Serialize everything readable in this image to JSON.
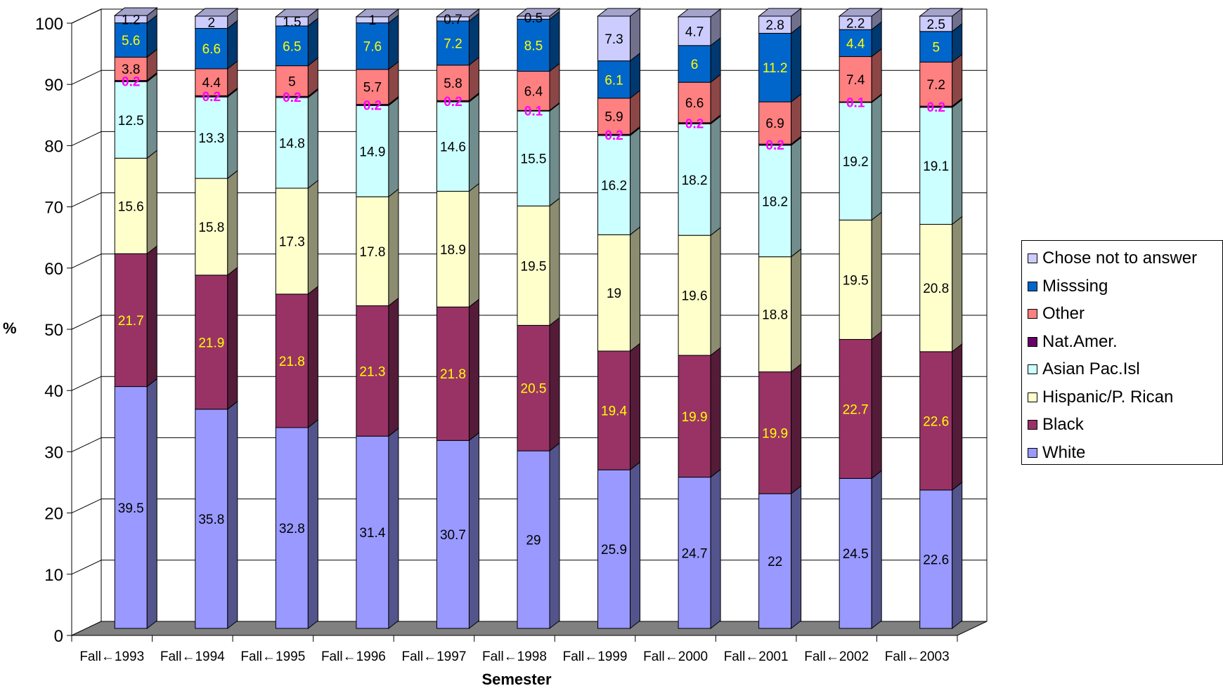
{
  "chart_data": {
    "type": "bar",
    "stacked": true,
    "three_d": true,
    "xlabel": "Semester",
    "ylabel": "%",
    "ylim": [
      0,
      100
    ],
    "yticks": [
      0,
      10,
      20,
      30,
      40,
      50,
      60,
      70,
      80,
      90,
      100
    ],
    "grid": true,
    "legend_position": "right",
    "categories": [
      "Fall←1993",
      "Fall←1994",
      "Fall←1995",
      "Fall←1996",
      "Fall←1997",
      "Fall←1998",
      "Fall←1999",
      "Fall←2000",
      "Fall←2001",
      "Fall←2002",
      "Fall←2003"
    ],
    "series": [
      {
        "name": "White",
        "color": "#9999ff",
        "label_color": "#000000",
        "label_bold": false,
        "values": [
          39.5,
          35.8,
          32.8,
          31.4,
          30.7,
          29,
          25.9,
          24.7,
          22,
          24.5,
          22.6
        ]
      },
      {
        "name": "Black",
        "color": "#993366",
        "label_color": "#ffff00",
        "label_bold": false,
        "values": [
          21.7,
          21.9,
          21.8,
          21.3,
          21.8,
          20.5,
          19.4,
          19.9,
          19.9,
          22.7,
          22.6
        ]
      },
      {
        "name": "Hispanic/P. Rican",
        "color": "#ffffcc",
        "label_color": "#000000",
        "label_bold": false,
        "values": [
          15.6,
          15.8,
          17.3,
          17.8,
          18.9,
          19.5,
          19,
          19.6,
          18.8,
          19.5,
          20.8
        ]
      },
      {
        "name": "Asian Pac.Isl",
        "color": "#ccffff",
        "label_color": "#000000",
        "label_bold": false,
        "values": [
          12.5,
          13.3,
          14.8,
          14.9,
          14.6,
          15.5,
          16.2,
          18.2,
          18.2,
          19.2,
          19.1
        ]
      },
      {
        "name": "Nat.Amer.",
        "color": "#660066",
        "label_color": "#ff00ff",
        "label_bold": true,
        "values": [
          0.2,
          0.2,
          0.2,
          0.2,
          0.2,
          0.1,
          0.2,
          0.2,
          0.2,
          0.1,
          0.2
        ]
      },
      {
        "name": "Other",
        "color": "#ff8080",
        "label_color": "#000000",
        "label_bold": false,
        "values": [
          3.8,
          4.4,
          5,
          5.7,
          5.8,
          6.4,
          5.9,
          6.6,
          6.9,
          7.4,
          7.2
        ]
      },
      {
        "name": "Misssing",
        "color": "#0066cc",
        "label_color": "#ffff00",
        "label_bold": false,
        "values": [
          5.6,
          6.6,
          6.5,
          7.6,
          7.2,
          8.5,
          6.1,
          6,
          11.2,
          4.4,
          5
        ]
      },
      {
        "name": "Chose not to answer",
        "color": "#ccccff",
        "label_color": "#000000",
        "label_bold": false,
        "values": [
          1.2,
          2,
          1.5,
          1,
          0.7,
          0.5,
          7.3,
          4.7,
          2.8,
          2.2,
          2.5
        ]
      }
    ],
    "legend_order": [
      "Chose not to answer",
      "Misssing",
      "Other",
      "Nat.Amer.",
      "Asian Pac.Isl",
      "Hispanic/P. Rican",
      "Black",
      "White"
    ]
  }
}
